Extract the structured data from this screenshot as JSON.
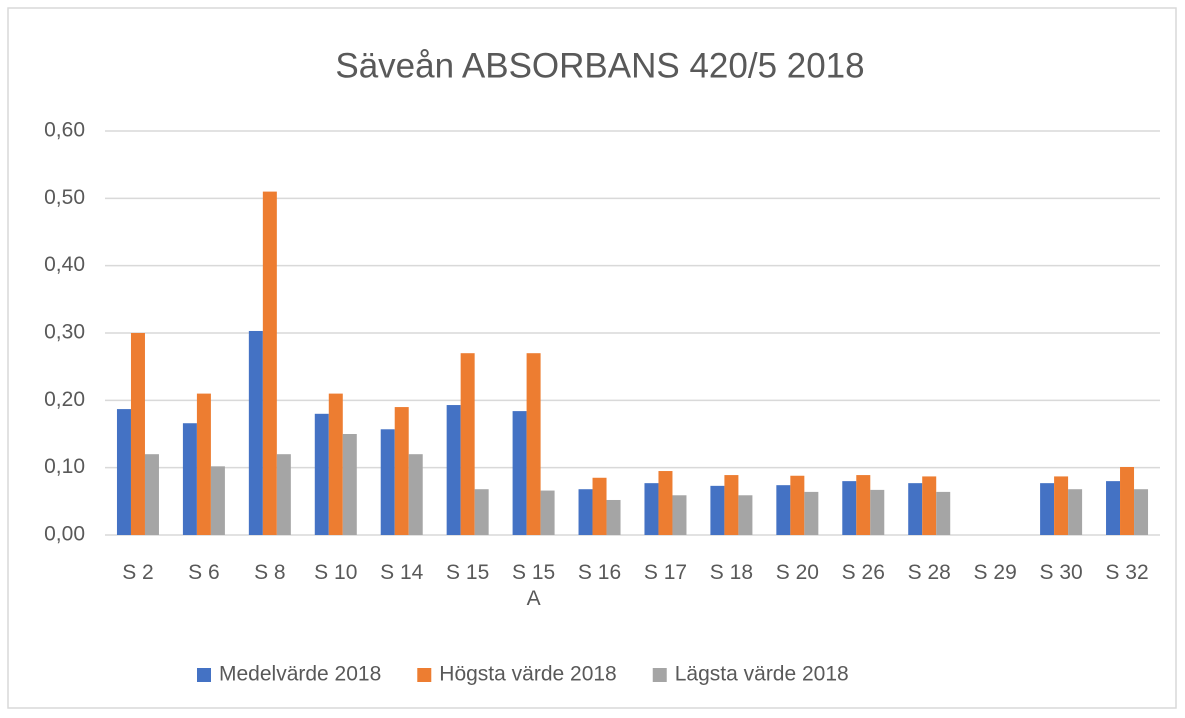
{
  "chart_data": {
    "type": "bar",
    "title": "Säveån ABSORBANS 420/5 2018",
    "categories": [
      "S 2",
      "S 6",
      "S 8",
      "S 10",
      "S 14",
      "S 15",
      "S 15 A",
      "S 16",
      "S 17",
      "S 18",
      "S 20",
      "S 26",
      "S 28",
      "S 29",
      "S 30",
      "S 32"
    ],
    "series": [
      {
        "name": "Medelvärde 2018",
        "color": "#4472c4",
        "values": [
          0.187,
          0.166,
          0.303,
          0.18,
          0.157,
          0.193,
          0.184,
          0.068,
          0.077,
          0.073,
          0.074,
          0.08,
          0.077,
          null,
          0.077,
          0.08
        ]
      },
      {
        "name": "Högsta värde 2018",
        "color": "#ed7d31",
        "values": [
          0.3,
          0.21,
          0.51,
          0.21,
          0.19,
          0.27,
          0.27,
          0.085,
          0.095,
          0.089,
          0.088,
          0.089,
          0.087,
          null,
          0.087,
          0.101
        ]
      },
      {
        "name": "Lägsta värde 2018",
        "color": "#a5a5a5",
        "values": [
          0.12,
          0.102,
          0.12,
          0.15,
          0.12,
          0.068,
          0.066,
          0.052,
          0.059,
          0.059,
          0.064,
          0.067,
          0.064,
          null,
          0.068,
          0.068
        ]
      }
    ],
    "ylim": [
      0,
      0.6
    ],
    "yticks": [
      {
        "value": 0,
        "label": "0,00"
      },
      {
        "value": 0.1,
        "label": "0,10"
      },
      {
        "value": 0.2,
        "label": "0,20"
      },
      {
        "value": 0.3,
        "label": "0,30"
      },
      {
        "value": 0.4,
        "label": "0,40"
      },
      {
        "value": 0.5,
        "label": "0,50"
      },
      {
        "value": 0.6,
        "label": "0,60"
      }
    ],
    "grid": true,
    "legend": "bottom"
  }
}
